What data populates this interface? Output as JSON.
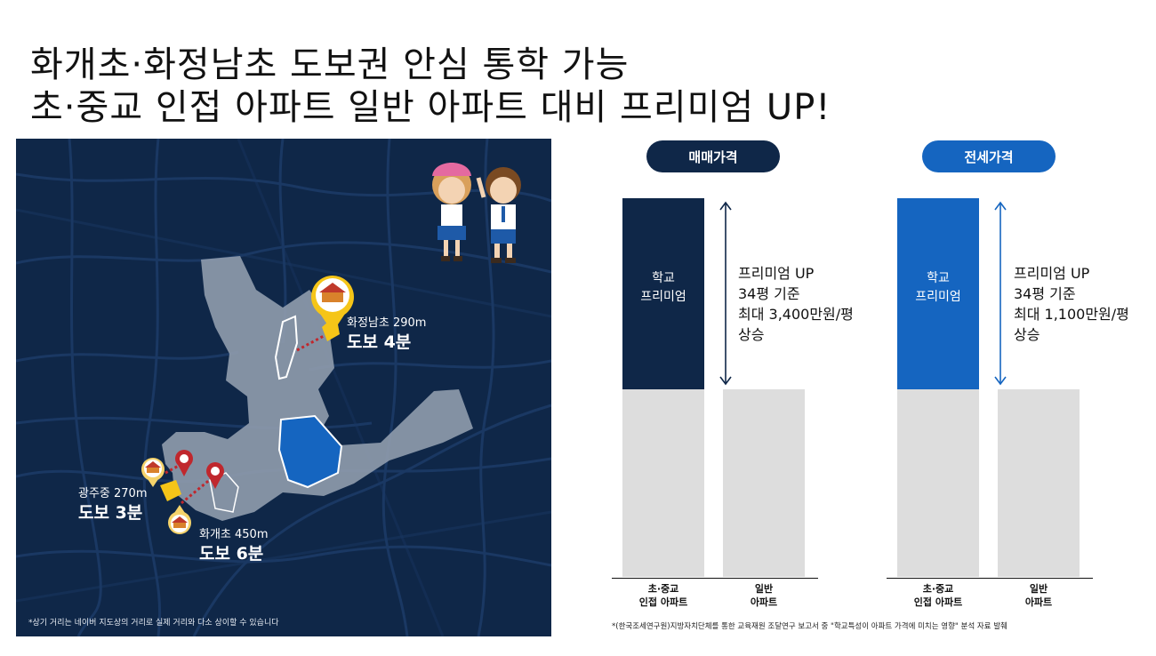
{
  "headline": {
    "line1": "화개초·화정남초 도보권 안심 통학 가능",
    "line2": "초·중교 인접 아파트 일반 아파트 대비 프리미엄 UP!"
  },
  "map": {
    "schools": [
      {
        "name": "화정남초 290m",
        "walk": "도보 4분"
      },
      {
        "name": "광주중 270m",
        "walk": "도보 3분"
      },
      {
        "name": "화개초 450m",
        "walk": "도보 6분"
      }
    ],
    "note": "*상기 거리는 네이버 지도상의 거리로 실제 거리와 다소 상이할 수 있습니다",
    "colors": {
      "background": "#0f2748",
      "area": "#8d9aab",
      "park": "#1565c0",
      "school_marker": "#f5c518",
      "pin": "#c0272d"
    }
  },
  "panels": [
    {
      "header": "매매가격",
      "inner_line1": "학교",
      "inner_line2": "프리미엄",
      "premium": [
        "프리미엄 UP",
        "34평 기준",
        "최대 3,400만원/평",
        "상승"
      ],
      "categories": [
        [
          "초·중교",
          "인접 아파트"
        ],
        [
          "일반",
          "아파트"
        ]
      ],
      "accent": "#0f2748"
    },
    {
      "header": "전세가격",
      "inner_line1": "학교",
      "inner_line2": "프리미엄",
      "premium": [
        "프리미엄 UP",
        "34평 기준",
        "최대 1,100만원/평",
        "상승"
      ],
      "categories": [
        [
          "초·중교",
          "인접 아파트"
        ],
        [
          "일반",
          "아파트"
        ]
      ],
      "accent": "#1565c0"
    }
  ],
  "source_note": "*(한국조세연구원)지방자치단체를 통한 교육재원 조달연구 보고서 중 \"학교특성이 아파트 가격에 미치는 영향\" 분석 자료 발췌"
}
